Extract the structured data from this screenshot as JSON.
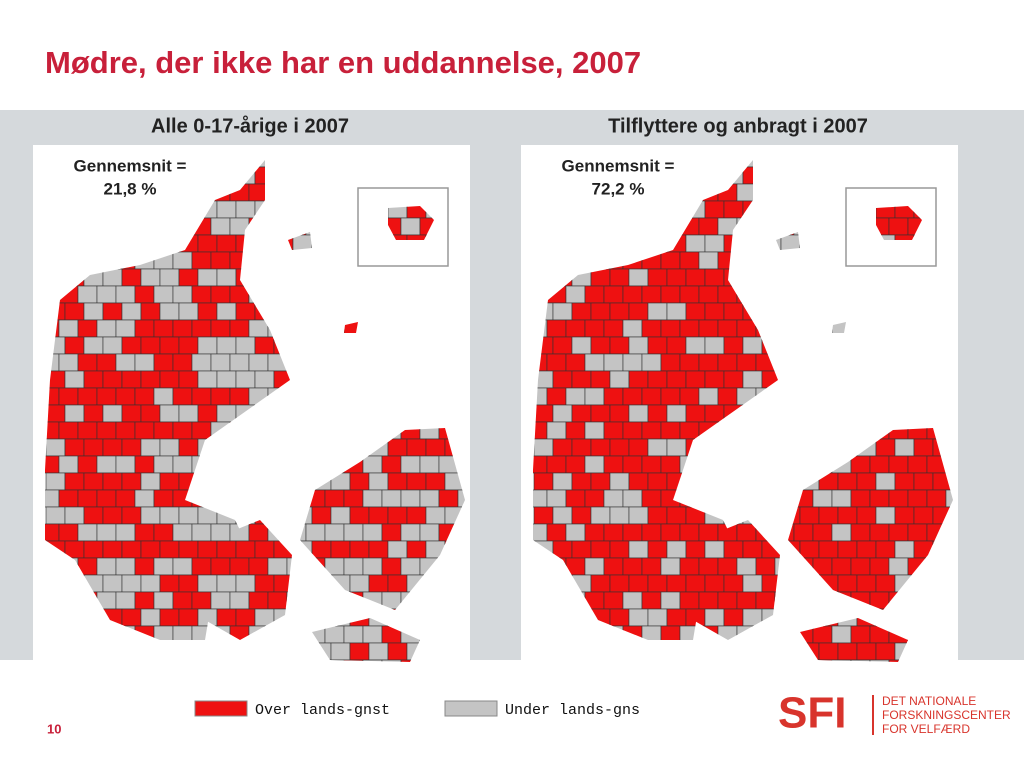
{
  "title": "Mødre, der ikke har en uddannelse, 2007",
  "maps": [
    {
      "title": "Alle 0-17-årige i 2007",
      "average_label": "Gennemsnit =",
      "average_value": "21,8 %"
    },
    {
      "title": "Tilflyttere og anbragt i 2007",
      "average_label": "Gennemsnit =",
      "average_value": "72,2 %"
    }
  ],
  "legend": [
    {
      "label": "Over lands-gnst",
      "color": "#ee1111"
    },
    {
      "label": "Under lands-gns",
      "color": "#c4c4c4"
    }
  ],
  "page_number": "10",
  "logo": {
    "mark": "SFI",
    "lines": [
      "DET NATIONALE",
      "FORSKNINGSCENTER",
      "FOR VELFÆRD"
    ]
  }
}
